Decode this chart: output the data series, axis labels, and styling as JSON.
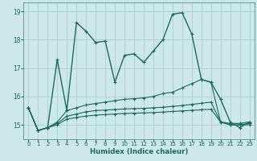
{
  "xlabel": "Humidex (Indice chaleur)",
  "bg_color": "#cce8e8",
  "grid_color": "#aacccc",
  "line_color": "#1a6b5e",
  "xlim": [
    -0.5,
    23.5
  ],
  "ylim": [
    14.5,
    19.3
  ],
  "yticks": [
    15,
    16,
    17,
    18,
    19
  ],
  "xticks": [
    0,
    1,
    2,
    3,
    4,
    5,
    6,
    7,
    8,
    9,
    10,
    11,
    12,
    13,
    14,
    15,
    16,
    17,
    18,
    19,
    20,
    21,
    22,
    23
  ],
  "lines": [
    [
      15.6,
      14.8,
      14.9,
      17.3,
      15.5,
      18.6,
      18.3,
      17.9,
      17.95,
      16.5,
      17.45,
      17.5,
      17.2,
      17.6,
      18.0,
      18.9,
      18.95,
      18.2,
      16.6,
      16.5,
      15.9,
      15.1,
      14.9,
      15.1
    ],
    [
      15.6,
      14.8,
      14.9,
      15.1,
      15.5,
      15.6,
      15.7,
      15.75,
      15.8,
      15.85,
      15.9,
      15.92,
      15.95,
      16.0,
      16.1,
      16.15,
      16.3,
      16.45,
      16.6,
      16.5,
      15.1,
      15.05,
      15.05,
      15.1
    ],
    [
      15.6,
      14.8,
      14.9,
      15.05,
      15.3,
      15.38,
      15.46,
      15.5,
      15.52,
      15.54,
      15.56,
      15.57,
      15.58,
      15.6,
      15.62,
      15.65,
      15.68,
      15.72,
      15.76,
      15.8,
      15.1,
      15.0,
      15.0,
      15.05
    ],
    [
      15.6,
      14.8,
      14.9,
      15.0,
      15.2,
      15.26,
      15.31,
      15.34,
      15.36,
      15.38,
      15.4,
      15.41,
      15.42,
      15.43,
      15.45,
      15.47,
      15.49,
      15.51,
      15.53,
      15.55,
      15.1,
      15.0,
      15.0,
      15.0
    ]
  ]
}
